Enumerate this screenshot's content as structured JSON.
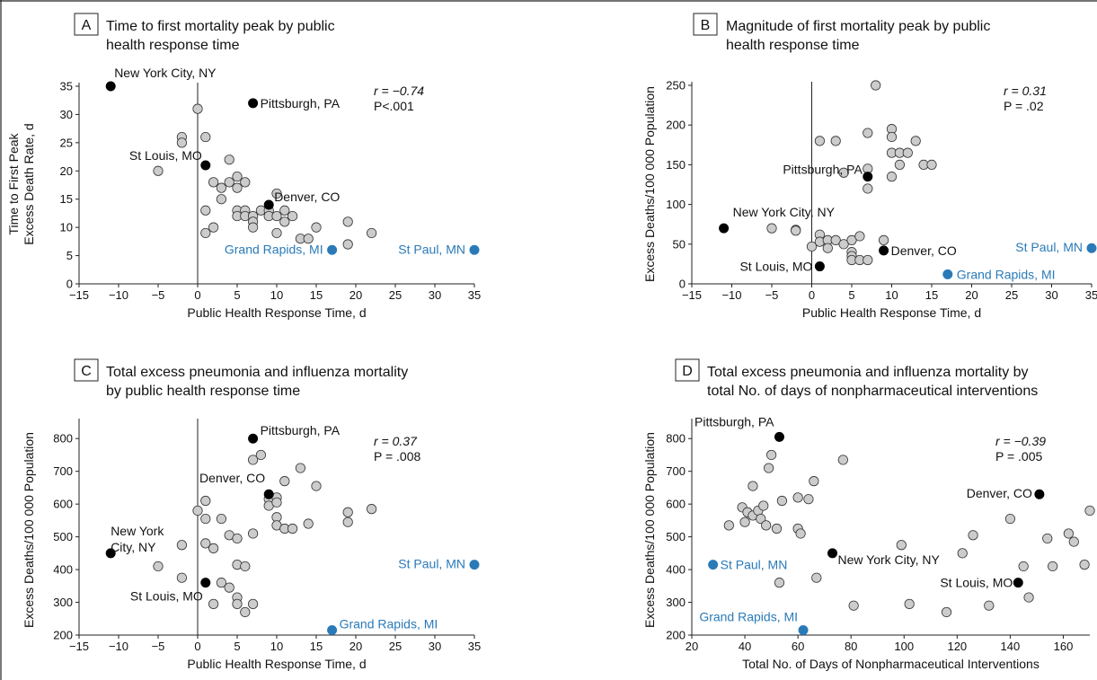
{
  "colors": {
    "gray_point": "#cccccc",
    "black_point": "#000000",
    "blue_point": "#2a7ab8",
    "blue_text": "#2a7ab8"
  },
  "chart_data": [
    {
      "type": "scatter",
      "letter": "A",
      "title_lines": [
        "Time to first mortality peak by public",
        "health response time"
      ],
      "xlabel": "Public Health Response Time, d",
      "ylabel_lines": [
        "Time to First Peak",
        "Excess Death Rate, d"
      ],
      "xlim": [
        -15,
        35
      ],
      "ylim": [
        0,
        35
      ],
      "xticks": [
        -15,
        -10,
        -5,
        0,
        5,
        10,
        15,
        20,
        25,
        30,
        35
      ],
      "yticks": [
        0,
        5,
        10,
        15,
        20,
        25,
        30,
        35
      ],
      "zero_line_x": 0,
      "stats": [
        "r = −0.74",
        "P<.001"
      ],
      "gray_points": [
        [
          -2,
          26
        ],
        [
          -2,
          25
        ],
        [
          -5,
          20
        ],
        [
          0,
          31
        ],
        [
          1,
          26
        ],
        [
          1,
          13
        ],
        [
          1,
          9
        ],
        [
          2,
          18
        ],
        [
          2,
          10
        ],
        [
          3,
          17
        ],
        [
          3,
          15
        ],
        [
          4,
          22
        ],
        [
          4,
          18
        ],
        [
          5,
          19
        ],
        [
          5,
          17
        ],
        [
          5,
          13
        ],
        [
          5,
          12
        ],
        [
          6,
          18
        ],
        [
          6,
          13
        ],
        [
          6,
          12
        ],
        [
          7,
          12
        ],
        [
          7,
          11
        ],
        [
          7,
          10
        ],
        [
          8,
          13
        ],
        [
          9,
          13
        ],
        [
          9,
          12
        ],
        [
          10,
          16
        ],
        [
          10,
          12
        ],
        [
          10,
          9
        ],
        [
          11,
          13
        ],
        [
          11,
          11
        ],
        [
          12,
          12
        ],
        [
          13,
          8
        ],
        [
          14,
          8
        ],
        [
          15,
          10
        ],
        [
          19,
          11
        ],
        [
          19,
          7
        ],
        [
          22,
          9
        ]
      ],
      "labeled_points": [
        {
          "x": -11,
          "y": 35,
          "label": "New York City, NY",
          "kind": "black"
        },
        {
          "x": 7,
          "y": 32,
          "label": "Pittsburgh, PA",
          "kind": "black"
        },
        {
          "x": 1,
          "y": 21,
          "label": "St Louis, MO",
          "kind": "black"
        },
        {
          "x": 9,
          "y": 14,
          "label": "Denver, CO",
          "kind": "black"
        },
        {
          "x": 17,
          "y": 6,
          "label": "Grand Rapids, MI",
          "kind": "blue"
        },
        {
          "x": 35,
          "y": 6,
          "label": "St Paul, MN",
          "kind": "blue"
        }
      ]
    },
    {
      "type": "scatter",
      "letter": "B",
      "title_lines": [
        "Magnitude of first mortality peak by public",
        "health response time"
      ],
      "xlabel": "Public Health Response Time, d",
      "ylabel_lines": [
        "Excess Deaths/100 000 Population"
      ],
      "xlim": [
        -15,
        35
      ],
      "ylim": [
        0,
        250
      ],
      "xticks": [
        -15,
        -10,
        -5,
        0,
        5,
        10,
        15,
        20,
        25,
        30,
        35
      ],
      "yticks": [
        0,
        50,
        100,
        150,
        200,
        250
      ],
      "zero_line_x": 0,
      "stats": [
        "r = 0.31",
        "P = .02"
      ],
      "gray_points": [
        [
          -5,
          70
        ],
        [
          -2,
          68
        ],
        [
          -2,
          67
        ],
        [
          0,
          47
        ],
        [
          1,
          62
        ],
        [
          1,
          53
        ],
        [
          1,
          180
        ],
        [
          2,
          55
        ],
        [
          2,
          45
        ],
        [
          3,
          55
        ],
        [
          3,
          180
        ],
        [
          4,
          50
        ],
        [
          4,
          140
        ],
        [
          5,
          55
        ],
        [
          5,
          40
        ],
        [
          5,
          35
        ],
        [
          5,
          30
        ],
        [
          6,
          60
        ],
        [
          6,
          30
        ],
        [
          7,
          30
        ],
        [
          7,
          190
        ],
        [
          7,
          145
        ],
        [
          7,
          120
        ],
        [
          8,
          250
        ],
        [
          9,
          55
        ],
        [
          10,
          195
        ],
        [
          10,
          185
        ],
        [
          10,
          165
        ],
        [
          10,
          135
        ],
        [
          11,
          165
        ],
        [
          11,
          150
        ],
        [
          12,
          165
        ],
        [
          13,
          180
        ],
        [
          14,
          150
        ],
        [
          15,
          150
        ]
      ],
      "labeled_points": [
        {
          "x": -11,
          "y": 70,
          "label": "New York City, NY",
          "kind": "black"
        },
        {
          "x": 7,
          "y": 135,
          "label": "Pittsburgh, PA",
          "kind": "black"
        },
        {
          "x": 9,
          "y": 42,
          "label": "Denver, CO",
          "kind": "black"
        },
        {
          "x": 1,
          "y": 22,
          "label": "St Louis, MO",
          "kind": "black"
        },
        {
          "x": 35,
          "y": 45,
          "label": "St Paul, MN",
          "kind": "blue"
        },
        {
          "x": 17,
          "y": 12,
          "label": "Grand Rapids, MI",
          "kind": "blue"
        }
      ]
    },
    {
      "type": "scatter",
      "letter": "C",
      "title_lines": [
        "Total excess pneumonia and influenza mortality",
        "by public health response time"
      ],
      "xlabel": "Public Health Response Time, d",
      "ylabel_lines": [
        "Excess Deaths/100 000 Population"
      ],
      "xlim": [
        -15,
        35
      ],
      "ylim": [
        200,
        850
      ],
      "xticks": [
        -15,
        -10,
        -5,
        0,
        5,
        10,
        15,
        20,
        25,
        30,
        35
      ],
      "yticks": [
        200,
        300,
        400,
        500,
        600,
        700,
        800
      ],
      "zero_line_x": 0,
      "stats": [
        "r = 0.37",
        "P = .008"
      ],
      "gray_points": [
        [
          -5,
          410
        ],
        [
          -2,
          475
        ],
        [
          -2,
          375
        ],
        [
          0,
          580
        ],
        [
          1,
          610
        ],
        [
          1,
          555
        ],
        [
          1,
          480
        ],
        [
          2,
          465
        ],
        [
          2,
          295
        ],
        [
          3,
          555
        ],
        [
          3,
          360
        ],
        [
          4,
          505
        ],
        [
          4,
          345
        ],
        [
          5,
          495
        ],
        [
          5,
          415
        ],
        [
          5,
          315
        ],
        [
          5,
          295
        ],
        [
          6,
          410
        ],
        [
          6,
          270
        ],
        [
          7,
          735
        ],
        [
          7,
          510
        ],
        [
          7,
          295
        ],
        [
          8,
          750
        ],
        [
          9,
          615
        ],
        [
          9,
          595
        ],
        [
          10,
          620
        ],
        [
          10,
          605
        ],
        [
          10,
          560
        ],
        [
          10,
          535
        ],
        [
          11,
          670
        ],
        [
          11,
          525
        ],
        [
          12,
          525
        ],
        [
          13,
          710
        ],
        [
          14,
          540
        ],
        [
          15,
          655
        ],
        [
          19,
          575
        ],
        [
          19,
          545
        ],
        [
          22,
          585
        ]
      ],
      "labeled_points": [
        {
          "x": 7,
          "y": 800,
          "label": "Pittsburgh, PA",
          "kind": "black"
        },
        {
          "x": 9,
          "y": 630,
          "label": "Denver, CO",
          "kind": "black"
        },
        {
          "x": -11,
          "y": 450,
          "label_lines": [
            "New York",
            "City, NY"
          ],
          "kind": "black"
        },
        {
          "x": 1,
          "y": 360,
          "label": "St Louis, MO",
          "kind": "black"
        },
        {
          "x": 35,
          "y": 415,
          "label": "St Paul, MN",
          "kind": "blue"
        },
        {
          "x": 17,
          "y": 215,
          "label": "Grand Rapids, MI",
          "kind": "blue"
        }
      ]
    },
    {
      "type": "scatter",
      "letter": "D",
      "title_lines": [
        "Total excess pneumonia and influenza mortality by",
        "total No. of days of nonpharmaceutical interventions"
      ],
      "xlabel": "Total No. of Days of Nonpharmaceutical Interventions",
      "ylabel_lines": [
        "Excess Deaths/100 000 Population"
      ],
      "xlim": [
        20,
        170
      ],
      "ylim": [
        200,
        850
      ],
      "xticks": [
        20,
        40,
        60,
        80,
        100,
        120,
        140,
        160
      ],
      "yticks": [
        200,
        300,
        400,
        500,
        600,
        700,
        800
      ],
      "zero_line_x": null,
      "stats": [
        "r = −0.39",
        "P = .005"
      ],
      "gray_points": [
        [
          34,
          535
        ],
        [
          39,
          590
        ],
        [
          40,
          545
        ],
        [
          41,
          575
        ],
        [
          43,
          655
        ],
        [
          43,
          565
        ],
        [
          45,
          580
        ],
        [
          46,
          555
        ],
        [
          47,
          595
        ],
        [
          48,
          535
        ],
        [
          49,
          710
        ],
        [
          50,
          750
        ],
        [
          52,
          525
        ],
        [
          53,
          360
        ],
        [
          54,
          610
        ],
        [
          60,
          620
        ],
        [
          60,
          525
        ],
        [
          61,
          510
        ],
        [
          64,
          615
        ],
        [
          66,
          670
        ],
        [
          67,
          375
        ],
        [
          77,
          735
        ],
        [
          81,
          290
        ],
        [
          99,
          475
        ],
        [
          102,
          295
        ],
        [
          116,
          270
        ],
        [
          122,
          450
        ],
        [
          126,
          505
        ],
        [
          132,
          290
        ],
        [
          140,
          555
        ],
        [
          145,
          410
        ],
        [
          147,
          315
        ],
        [
          154,
          495
        ],
        [
          156,
          410
        ],
        [
          162,
          510
        ],
        [
          164,
          485
        ],
        [
          168,
          415
        ],
        [
          170,
          580
        ]
      ],
      "labeled_points": [
        {
          "x": 53,
          "y": 805,
          "label": "Pittsburgh, PA",
          "kind": "black"
        },
        {
          "x": 151,
          "y": 630,
          "label": "Denver, CO",
          "kind": "black"
        },
        {
          "x": 73,
          "y": 450,
          "label": "New York City, NY",
          "kind": "black"
        },
        {
          "x": 143,
          "y": 360,
          "label": "St Louis, MO",
          "kind": "black"
        },
        {
          "x": 28,
          "y": 415,
          "label": "St Paul, MN",
          "kind": "blue"
        },
        {
          "x": 62,
          "y": 215,
          "label": "Grand Rapids, MI",
          "kind": "blue"
        }
      ]
    }
  ]
}
